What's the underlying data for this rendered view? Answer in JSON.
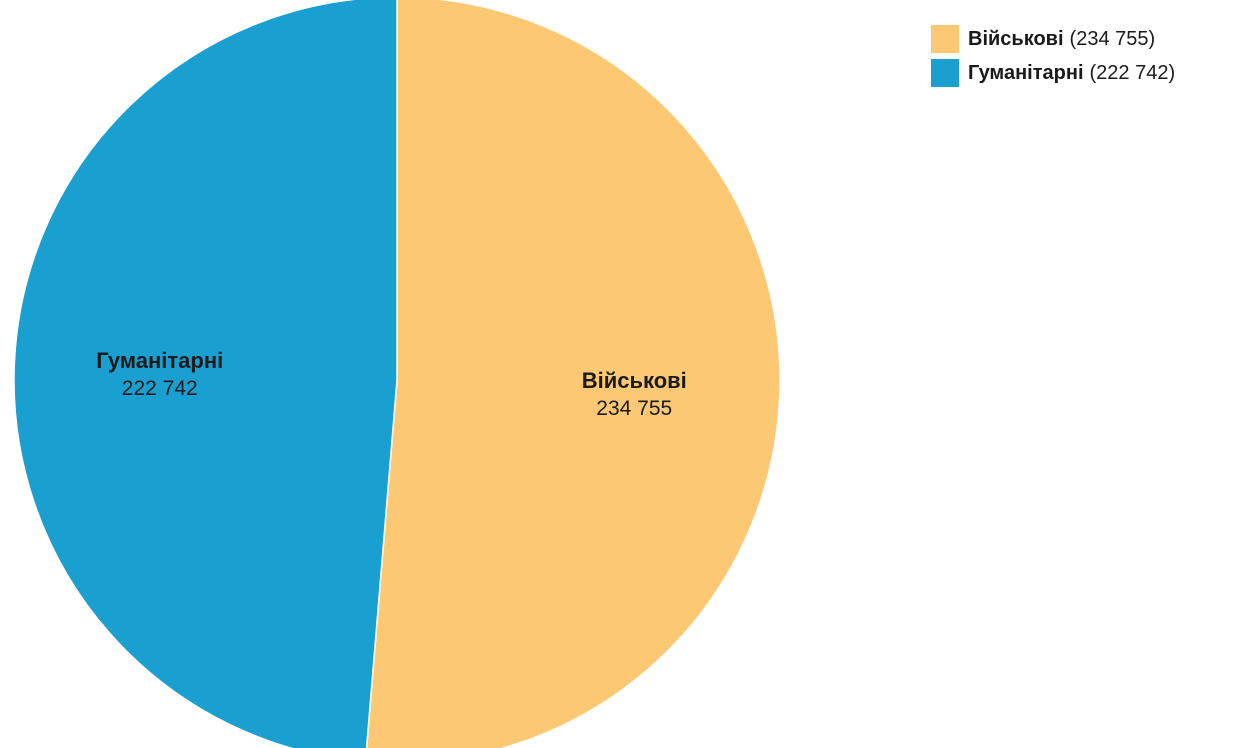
{
  "chart_data": {
    "type": "pie",
    "slices": [
      {
        "name": "Військові",
        "value": 234755,
        "value_label": "234 755",
        "legend_value": "(234 755)",
        "color": "#fcc873"
      },
      {
        "name": "Гуманітарні",
        "value": 222742,
        "value_label": "222 742",
        "legend_value": "(222 742)",
        "color": "#1aa0d0"
      }
    ],
    "legend_placement": "top-right",
    "start_angle": "12 o'clock",
    "direction": "clockwise"
  }
}
